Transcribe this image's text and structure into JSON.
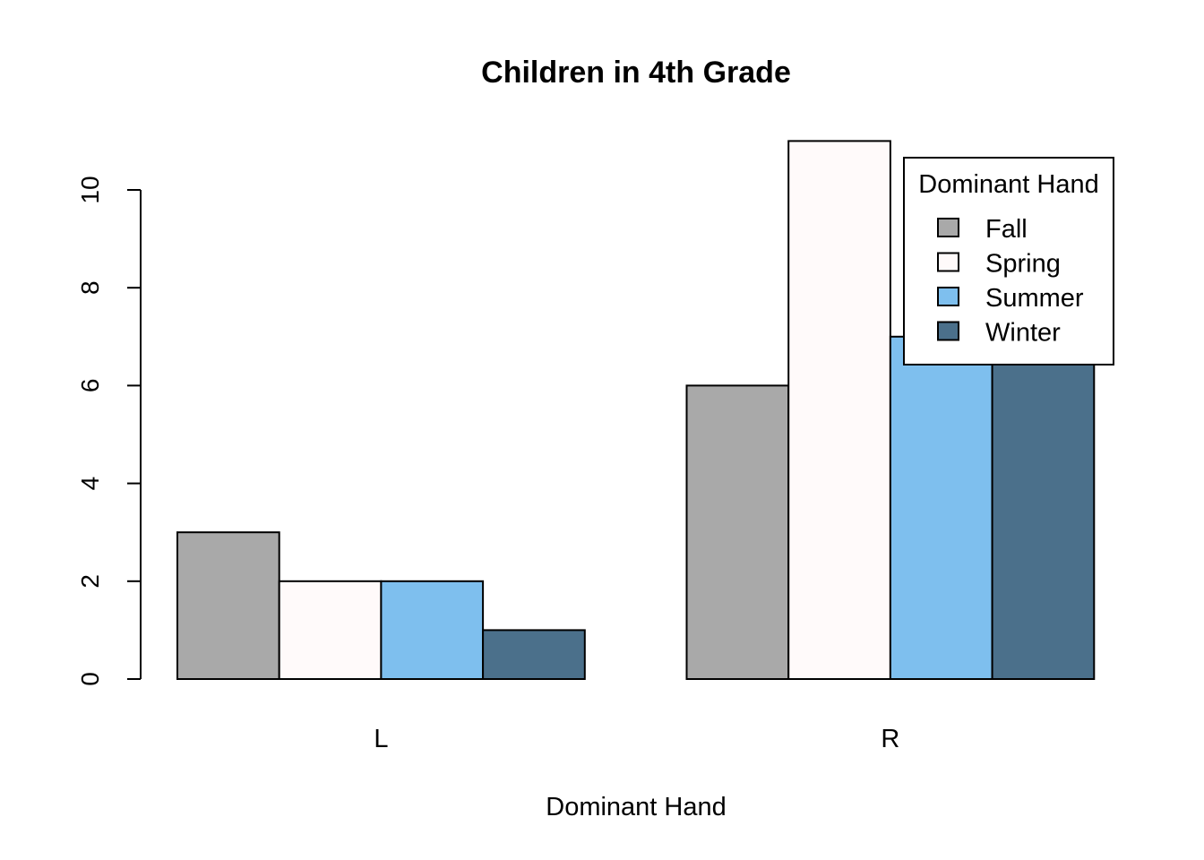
{
  "chart_data": {
    "type": "bar",
    "title": "Children in 4th Grade",
    "xlabel": "Dominant Hand",
    "ylabel": "",
    "categories": [
      "L",
      "R"
    ],
    "series": [
      {
        "name": "Fall",
        "values": [
          3,
          6
        ],
        "color": "#A9A9A9"
      },
      {
        "name": "Spring",
        "values": [
          2,
          11
        ],
        "color": "#FFFAFA"
      },
      {
        "name": "Summer",
        "values": [
          2,
          7
        ],
        "color": "#7EBFEE"
      },
      {
        "name": "Winter",
        "values": [
          1,
          7
        ],
        "color": "#4B708B"
      }
    ],
    "yticks": [
      0,
      2,
      4,
      6,
      8,
      10
    ],
    "ylim": [
      0,
      11
    ],
    "grid": false,
    "legend": {
      "title": "Dominant Hand",
      "position": "top-right"
    }
  }
}
